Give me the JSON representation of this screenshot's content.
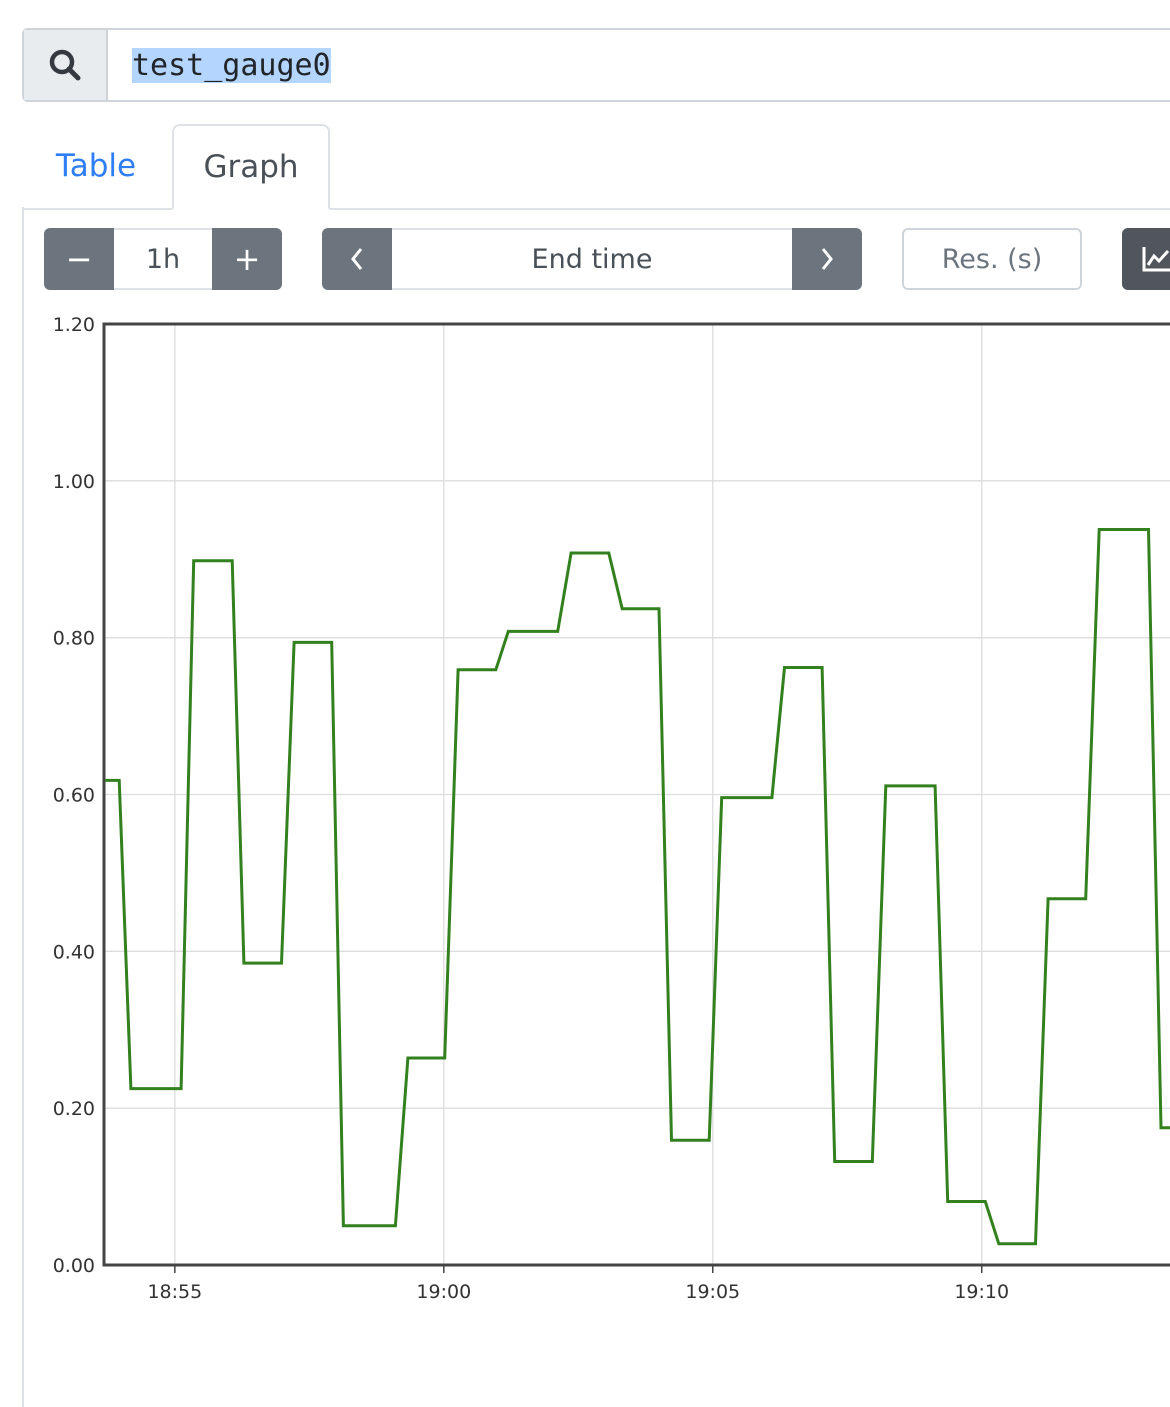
{
  "query": {
    "value": "test_gauge0",
    "icon": "search-icon"
  },
  "tabs": [
    {
      "label": "Table",
      "active": false
    },
    {
      "label": "Graph",
      "active": true
    }
  ],
  "controls": {
    "range_minus": "−",
    "range_value": "1h",
    "range_plus": "+",
    "end_time_prev": "‹",
    "end_time_placeholder": "End time",
    "end_time_next": "›",
    "resolution_placeholder": "Res. (s)",
    "chart_type_icon": "line-chart-icon"
  },
  "colors": {
    "series": "#33801f",
    "accent": "#2f7ef6",
    "button": "#6c757d"
  },
  "chart_data": {
    "type": "line",
    "ylim": [
      0,
      1.2
    ],
    "yticks": [
      "0.00",
      "0.20",
      "0.40",
      "0.60",
      "0.80",
      "1.00",
      "1.20"
    ],
    "xlim": [
      "18:53:41",
      "19:13:30"
    ],
    "xticks": [
      "18:55",
      "19:00",
      "19:05",
      "19:10"
    ],
    "grid": true,
    "series": [
      {
        "points": [
          [
            "18:53:42",
            0.618
          ],
          [
            "18:53:58",
            0.618
          ],
          [
            "18:54:11",
            0.225
          ],
          [
            "18:55:07",
            0.225
          ],
          [
            "18:55:21",
            0.898
          ],
          [
            "18:56:04",
            0.898
          ],
          [
            "18:56:17",
            0.385
          ],
          [
            "18:56:59",
            0.385
          ],
          [
            "18:57:13",
            0.794
          ],
          [
            "18:57:55",
            0.794
          ],
          [
            "18:58:08",
            0.05
          ],
          [
            "18:59:06",
            0.05
          ],
          [
            "18:59:20",
            0.264
          ],
          [
            "19:00:01",
            0.264
          ],
          [
            "19:00:16",
            0.759
          ],
          [
            "19:00:58",
            0.759
          ],
          [
            "19:01:12",
            0.808
          ],
          [
            "19:02:07",
            0.808
          ],
          [
            "19:02:22",
            0.908
          ],
          [
            "19:03:04",
            0.908
          ],
          [
            "19:03:19",
            0.837
          ],
          [
            "19:04:00",
            0.837
          ],
          [
            "19:04:14",
            0.159
          ],
          [
            "19:04:56",
            0.159
          ],
          [
            "19:05:10",
            0.596
          ],
          [
            "19:06:06",
            0.596
          ],
          [
            "19:06:20",
            0.762
          ],
          [
            "19:07:02",
            0.762
          ],
          [
            "19:07:16",
            0.132
          ],
          [
            "19:07:58",
            0.132
          ],
          [
            "19:08:13",
            0.611
          ],
          [
            "19:09:08",
            0.611
          ],
          [
            "19:09:22",
            0.081
          ],
          [
            "19:10:04",
            0.081
          ],
          [
            "19:10:19",
            0.027
          ],
          [
            "19:11:00",
            0.027
          ],
          [
            "19:11:14",
            0.467
          ],
          [
            "19:11:56",
            0.467
          ],
          [
            "19:12:11",
            0.938
          ],
          [
            "19:13:06",
            0.938
          ],
          [
            "19:13:20",
            0.175
          ],
          [
            "19:13:30",
            0.175
          ]
        ]
      }
    ]
  }
}
